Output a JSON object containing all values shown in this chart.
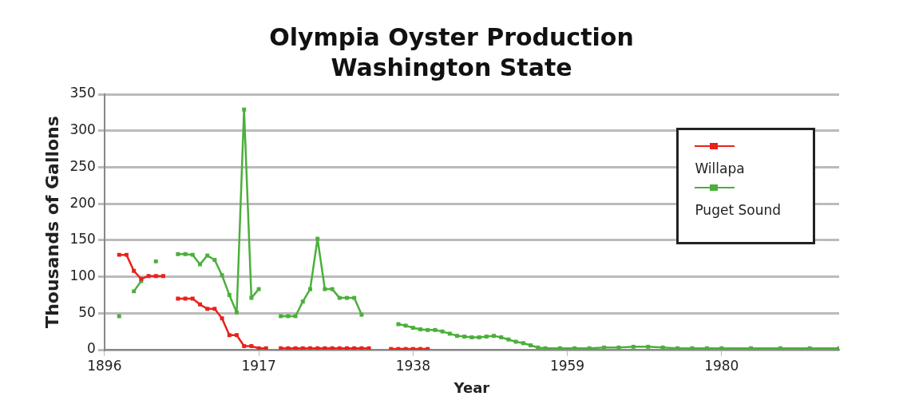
{
  "chart_data": {
    "type": "line",
    "title": "Olympia Oyster Production\nWashington State",
    "xlabel": "Year",
    "ylabel": "Thousands of Gallons",
    "series": [
      {
        "name": "Willapa",
        "color": "#e8221c",
        "x": [
          1898,
          1899,
          1900,
          1901,
          1902,
          1903,
          1904,
          1905,
          1906,
          1907,
          1908,
          1909,
          1910,
          1911,
          1912,
          1913,
          1914,
          1915,
          1916,
          1917,
          1918,
          1919,
          1920,
          1921,
          1922,
          1923,
          1924,
          1925,
          1926,
          1927,
          1928,
          1929,
          1930,
          1931,
          1932,
          1933,
          1934,
          1935,
          1936,
          1937,
          1938,
          1939,
          1940
        ],
        "values": [
          130,
          130,
          108,
          97,
          101,
          101,
          101,
          null,
          70,
          70,
          70,
          62,
          56,
          56,
          43,
          20,
          20,
          5,
          5,
          2,
          2,
          null,
          2,
          2,
          2,
          2,
          2,
          2,
          2,
          2,
          2,
          2,
          2,
          2,
          2,
          null,
          null,
          1,
          1,
          1,
          1,
          1,
          1
        ]
      },
      {
        "name": "Puget Sound",
        "color": "#4caf3c",
        "x": [
          1898,
          1899,
          1900,
          1901,
          1902,
          1903,
          1904,
          1905,
          1906,
          1907,
          1908,
          1909,
          1910,
          1911,
          1912,
          1913,
          1914,
          1915,
          1916,
          1917,
          1918,
          1919,
          1920,
          1921,
          1922,
          1923,
          1924,
          1925,
          1926,
          1927,
          1928,
          1929,
          1930,
          1931,
          1932,
          1933,
          1934,
          1935,
          1936,
          1937,
          1938,
          1939,
          1940,
          1941,
          1942,
          1943,
          1944,
          1945,
          1946,
          1947,
          1948,
          1949,
          1950,
          1951,
          1952,
          1953,
          1954,
          1955,
          1956,
          1958,
          1960,
          1962,
          1964,
          1966,
          1968,
          1970,
          1972,
          1974,
          1976,
          1978,
          1980,
          1984,
          1988,
          1992,
          1996
        ],
        "values": [
          46,
          null,
          80,
          94,
          null,
          121,
          null,
          null,
          131,
          131,
          130,
          117,
          129,
          123,
          102,
          75,
          51,
          329,
          71,
          83,
          null,
          null,
          46,
          46,
          46,
          66,
          83,
          152,
          83,
          83,
          71,
          71,
          71,
          48,
          null,
          null,
          null,
          null,
          35,
          33,
          30,
          28,
          27,
          27,
          25,
          22,
          19,
          18,
          17,
          17,
          18,
          19,
          17,
          14,
          11,
          9,
          6,
          3,
          2,
          2,
          2,
          2,
          3,
          3,
          4,
          4,
          3,
          2,
          2,
          2,
          2,
          2,
          2,
          2,
          2
        ]
      }
    ],
    "xlim": [
      1896,
      1996
    ],
    "xticks": [
      1896,
      1917,
      1938,
      1959,
      1980
    ],
    "ylim": [
      0,
      350
    ],
    "yticks": [
      0,
      50,
      100,
      150,
      200,
      250,
      300,
      350
    ],
    "grid": "y",
    "legend": "top right",
    "marker": "square",
    "line_style": "solid"
  }
}
